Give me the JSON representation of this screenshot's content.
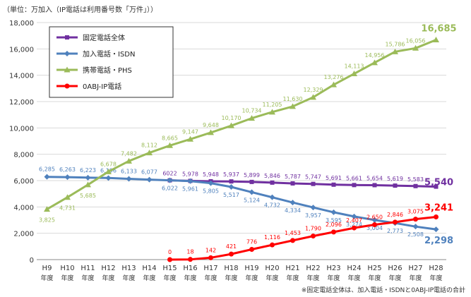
{
  "unit_note": "（単位：万加入（IP電話は利用番号数「万件」））",
  "footnote": "※固定電話全体は、加入電話・ISDNと0ABJ-IP電話の合計",
  "chart_data": {
    "type": "line",
    "title": "",
    "xlabel": "",
    "ylabel": "",
    "ylim": [
      0,
      18000
    ],
    "yticks": [
      0,
      2000,
      4000,
      6000,
      8000,
      10000,
      12000,
      14000,
      16000,
      18000
    ],
    "ytick_labels": [
      "0",
      "2,000",
      "4,000",
      "6,000",
      "8,000",
      "10,000",
      "12,000",
      "14,000",
      "16,000",
      "18,000"
    ],
    "grid": true,
    "legend_position": "top-left",
    "categories": [
      "H9",
      "H10",
      "H11",
      "H12",
      "H13",
      "H14",
      "H15",
      "H16",
      "H17",
      "H18",
      "H19",
      "H20",
      "H21",
      "H22",
      "H23",
      "H24",
      "H25",
      "H26",
      "H27",
      "H28"
    ],
    "category_suffix": "年度",
    "series": [
      {
        "name": "固定電話全体",
        "color": "#7030a0",
        "marker": "square",
        "values": [
          null,
          null,
          null,
          null,
          null,
          null,
          6022,
          5978,
          5948,
          5937,
          5899,
          5846,
          5787,
          5747,
          5691,
          5661,
          5654,
          5619,
          5583,
          5540
        ],
        "labels": [
          null,
          null,
          null,
          null,
          null,
          null,
          "6022",
          "5,978",
          "5,948",
          "5,937",
          "5,899",
          "5,846",
          "5,787",
          "5,747",
          "5,691",
          "5,661",
          "5,654",
          "5,619",
          "5,583",
          "5,540"
        ]
      },
      {
        "name": "加入電話・ISDN",
        "color": "#4f81bd",
        "marker": "diamond",
        "values": [
          6285,
          6263,
          6223,
          6196,
          6133,
          6077,
          6022,
          5961,
          5805,
          5517,
          5124,
          4732,
          4334,
          3957,
          3595,
          3274,
          3004,
          2773,
          2508,
          2298
        ],
        "labels": [
          "6,285",
          "6,263",
          "6,223",
          "6,196",
          "6,133",
          "6,077",
          "6,022",
          "5,961",
          "5,805",
          "5,517",
          "5,124",
          "4,732",
          "4,334",
          "3,957",
          "3,595",
          "3,274",
          "3,004",
          "2,773",
          "2,508",
          "2,298"
        ]
      },
      {
        "name": "携帯電話・PHS",
        "color": "#9bbb59",
        "marker": "triangle",
        "values": [
          3825,
          4731,
          5685,
          6678,
          7482,
          8112,
          8665,
          9147,
          9648,
          10170,
          10734,
          11205,
          11630,
          12329,
          13276,
          14113,
          14956,
          15786,
          16056,
          16685
        ],
        "labels": [
          "3,825",
          "4,731",
          "5,685",
          "6,678",
          "7,482",
          "8,112",
          "8,665",
          "9,147",
          "9,648",
          "10,170",
          "10,734",
          "11,205",
          "11,630",
          "12,329",
          "13,276",
          "14,113",
          "14,956",
          "15,786",
          "16,056",
          "16,685"
        ]
      },
      {
        "name": "0ABJ-IP電話",
        "color": "#ff0000",
        "marker": "circle",
        "values": [
          null,
          null,
          null,
          null,
          null,
          null,
          0,
          18,
          142,
          421,
          776,
          1116,
          1453,
          1790,
          2096,
          2407,
          2650,
          2846,
          3075,
          3241
        ],
        "labels": [
          null,
          null,
          null,
          null,
          null,
          null,
          "0",
          "18",
          "142",
          "421",
          "776",
          "1,116",
          "1,453",
          "1,790",
          "2,096",
          "2,407",
          "2,650",
          "2,846",
          "3,075",
          "3,241"
        ]
      }
    ]
  }
}
